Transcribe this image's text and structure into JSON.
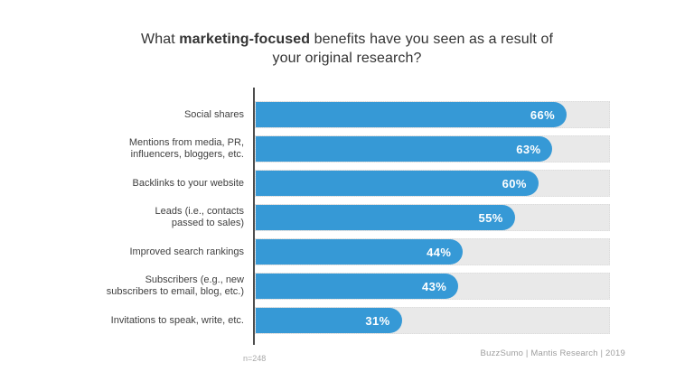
{
  "title": {
    "prefix": "What ",
    "bold": "marketing-focused",
    "suffix": " benefits have you seen as a result of your original research?"
  },
  "chart_data": {
    "type": "bar",
    "orientation": "horizontal",
    "title": "What marketing-focused benefits have you seen as a result of your original research?",
    "categories": [
      "Social shares",
      "Mentions from media, PR,\ninfluencers, bloggers, etc.",
      "Backlinks to your website",
      "Leads (i.e., contacts\npassed to sales)",
      "Improved search rankings",
      "Subscribers (e.g., new\nsubscribers to email, blog, etc.)",
      "Invitations to speak, write, etc."
    ],
    "values": [
      66,
      63,
      60,
      55,
      44,
      43,
      31
    ],
    "value_labels": [
      "66%",
      "63%",
      "60%",
      "55%",
      "44%",
      "43%",
      "31%"
    ],
    "xlim": [
      0,
      75
    ],
    "grid": false,
    "legend": false,
    "bar_color": "#3699d6",
    "track_color": "#e9e9e9",
    "value_label_color": "#ffffff"
  },
  "footer": {
    "sample_size": "n=248",
    "attribution": "BuzzSumo | Mantis Research | 2019"
  }
}
